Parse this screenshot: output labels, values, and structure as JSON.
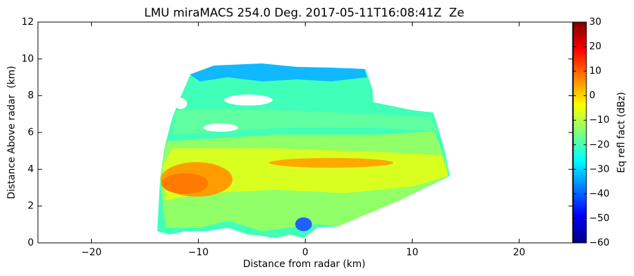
{
  "chart_data": {
    "type": "radar_rhi",
    "title": "LMU miraMACS 254.0 Deg. 2017-05-11T16:08:41Z  Ze",
    "x_label": "Distance from radar (km)",
    "y_label": "Distance Above radar  (km)",
    "xlim": [
      -25,
      25
    ],
    "xticks": [
      {
        "value": -20,
        "label": "−20"
      },
      {
        "value": -10,
        "label": "−10"
      },
      0,
      10,
      20
    ],
    "ylim": [
      0,
      12
    ],
    "yticks": [
      0,
      2,
      4,
      6,
      8,
      10,
      12
    ],
    "colorbar": {
      "label": "Eq refl fact (dBz)",
      "colormap": "jet",
      "lim": [
        -60,
        30
      ],
      "ticks": [
        {
          "value": -60,
          "label": "−60"
        },
        {
          "value": -50,
          "label": "−50"
        },
        {
          "value": -40,
          "label": "−40"
        },
        {
          "value": -30,
          "label": "−30"
        },
        {
          "value": -20,
          "label": "−20"
        },
        {
          "value": -10,
          "label": "−10"
        },
        0,
        10,
        20,
        30
      ]
    }
  }
}
